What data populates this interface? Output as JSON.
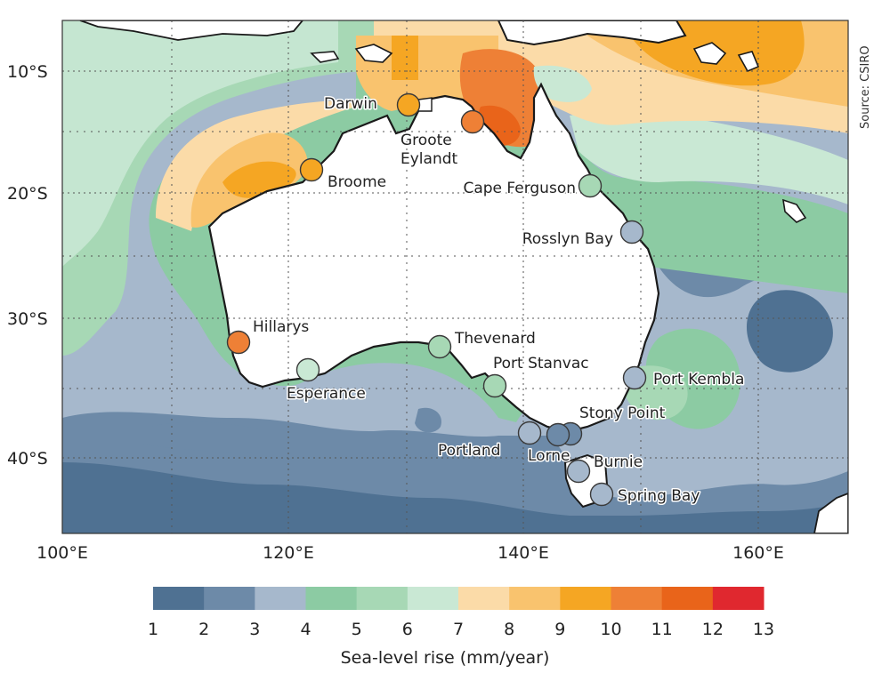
{
  "source": "Source: CSIRO",
  "axes": {
    "lat_ticks": [
      "10°S",
      "20°S",
      "30°S",
      "40°S"
    ],
    "lon_ticks": [
      "100°E",
      "120°E",
      "140°E",
      "160°E"
    ]
  },
  "legend": {
    "title": "Sea-level rise (mm/year)",
    "ticks": [
      "1",
      "2",
      "3",
      "4",
      "5",
      "6",
      "7",
      "8",
      "9",
      "10",
      "11",
      "12",
      "13"
    ],
    "colors": [
      "#4f7192",
      "#6d8aa8",
      "#a6b8cc",
      "#8ccba3",
      "#a7d8b5",
      "#c9e8d4",
      "#fbdba8",
      "#f9c36e",
      "#f5a623",
      "#ee8036",
      "#e9641a",
      "#e0282f"
    ]
  },
  "stations": [
    {
      "name": "Darwin",
      "rate": 9
    },
    {
      "name": "Groote Eylandt",
      "name_line1": "Groote",
      "name_line2": "Eylandt",
      "rate": 10
    },
    {
      "name": "Broome",
      "rate": 9
    },
    {
      "name": "Cape Ferguson",
      "rate": 5
    },
    {
      "name": "Rosslyn Bay",
      "rate": 3
    },
    {
      "name": "Hillarys",
      "rate": 10
    },
    {
      "name": "Thevenard",
      "rate": 5
    },
    {
      "name": "Esperance",
      "rate": 6
    },
    {
      "name": "Port Stanvac",
      "rate": 5
    },
    {
      "name": "Port Kembla",
      "rate": 3
    },
    {
      "name": "Stony Point",
      "rate": 2
    },
    {
      "name": "Portland",
      "rate": 3
    },
    {
      "name": "Lorne",
      "rate": 2
    },
    {
      "name": "Burnie",
      "rate": 3
    },
    {
      "name": "Spring Bay",
      "rate": 3
    }
  ]
}
